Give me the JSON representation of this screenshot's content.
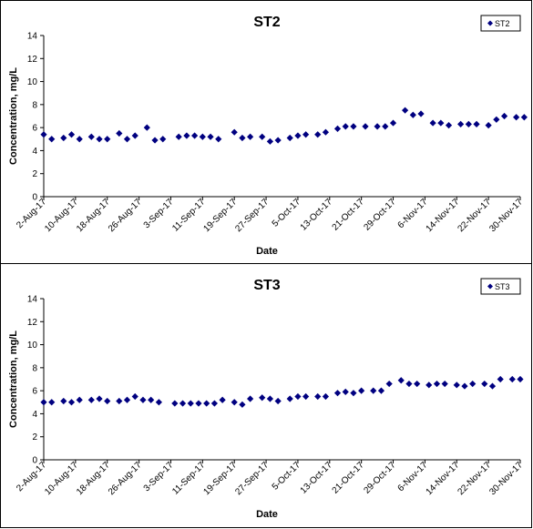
{
  "chart_data": [
    {
      "type": "scatter",
      "title": "ST2",
      "xlabel": "Date",
      "ylabel": "Concentration, mg/L",
      "ylim": [
        0,
        14
      ],
      "yticks": [
        "0",
        "2",
        "4",
        "6",
        "8",
        "10",
        "12",
        "14"
      ],
      "xlim": [
        "2-Aug-17",
        "30-Nov-17"
      ],
      "xticks": [
        "2-Aug-17",
        "10-Aug-17",
        "18-Aug-17",
        "26-Aug-17",
        "3-Sep-17",
        "11-Sep-17",
        "19-Sep-17",
        "27-Sep-17",
        "5-Oct-17",
        "13-Oct-17",
        "21-Oct-17",
        "29-Oct-17",
        "6-Nov-17",
        "14-Nov-17",
        "22-Nov-17",
        "30-Nov-17"
      ],
      "grid": false,
      "legend_position": "top-right",
      "marker_color": "#000080",
      "series": [
        {
          "name": "ST2",
          "points": [
            {
              "x": "2-Aug-17",
              "y": 5.4
            },
            {
              "x": "4-Aug-17",
              "y": 5.0
            },
            {
              "x": "7-Aug-17",
              "y": 5.1
            },
            {
              "x": "9-Aug-17",
              "y": 5.4
            },
            {
              "x": "11-Aug-17",
              "y": 5.0
            },
            {
              "x": "14-Aug-17",
              "y": 5.2
            },
            {
              "x": "16-Aug-17",
              "y": 5.0
            },
            {
              "x": "18-Aug-17",
              "y": 5.0
            },
            {
              "x": "21-Aug-17",
              "y": 5.5
            },
            {
              "x": "23-Aug-17",
              "y": 5.0
            },
            {
              "x": "25-Aug-17",
              "y": 5.3
            },
            {
              "x": "28-Aug-17",
              "y": 6.0
            },
            {
              "x": "30-Aug-17",
              "y": 4.9
            },
            {
              "x": "1-Sep-17",
              "y": 5.0
            },
            {
              "x": "5-Sep-17",
              "y": 5.2
            },
            {
              "x": "7-Sep-17",
              "y": 5.3
            },
            {
              "x": "9-Sep-17",
              "y": 5.3
            },
            {
              "x": "11-Sep-17",
              "y": 5.2
            },
            {
              "x": "13-Sep-17",
              "y": 5.2
            },
            {
              "x": "15-Sep-17",
              "y": 5.0
            },
            {
              "x": "19-Sep-17",
              "y": 5.6
            },
            {
              "x": "21-Sep-17",
              "y": 5.1
            },
            {
              "x": "23-Sep-17",
              "y": 5.2
            },
            {
              "x": "26-Sep-17",
              "y": 5.2
            },
            {
              "x": "28-Sep-17",
              "y": 4.8
            },
            {
              "x": "30-Sep-17",
              "y": 4.9
            },
            {
              "x": "3-Oct-17",
              "y": 5.1
            },
            {
              "x": "5-Oct-17",
              "y": 5.3
            },
            {
              "x": "7-Oct-17",
              "y": 5.4
            },
            {
              "x": "10-Oct-17",
              "y": 5.4
            },
            {
              "x": "12-Oct-17",
              "y": 5.6
            },
            {
              "x": "15-Oct-17",
              "y": 5.9
            },
            {
              "x": "17-Oct-17",
              "y": 6.1
            },
            {
              "x": "19-Oct-17",
              "y": 6.1
            },
            {
              "x": "22-Oct-17",
              "y": 6.1
            },
            {
              "x": "25-Oct-17",
              "y": 6.1
            },
            {
              "x": "27-Oct-17",
              "y": 6.1
            },
            {
              "x": "29-Oct-17",
              "y": 6.4
            },
            {
              "x": "1-Nov-17",
              "y": 7.5
            },
            {
              "x": "3-Nov-17",
              "y": 7.1
            },
            {
              "x": "5-Nov-17",
              "y": 7.2
            },
            {
              "x": "8-Nov-17",
              "y": 6.4
            },
            {
              "x": "10-Nov-17",
              "y": 6.4
            },
            {
              "x": "12-Nov-17",
              "y": 6.2
            },
            {
              "x": "15-Nov-17",
              "y": 6.3
            },
            {
              "x": "17-Nov-17",
              "y": 6.3
            },
            {
              "x": "19-Nov-17",
              "y": 6.3
            },
            {
              "x": "22-Nov-17",
              "y": 6.2
            },
            {
              "x": "24-Nov-17",
              "y": 6.7
            },
            {
              "x": "26-Nov-17",
              "y": 7.0
            },
            {
              "x": "29-Nov-17",
              "y": 6.9
            },
            {
              "x": "1-Dec-17",
              "y": 6.9
            }
          ]
        }
      ]
    },
    {
      "type": "scatter",
      "title": "ST3",
      "xlabel": "Date",
      "ylabel": "Concentration, mg/L",
      "ylim": [
        0,
        14
      ],
      "yticks": [
        "0",
        "2",
        "4",
        "6",
        "8",
        "10",
        "12",
        "14"
      ],
      "xlim": [
        "2-Aug-17",
        "30-Nov-17"
      ],
      "xticks": [
        "2-Aug-17",
        "10-Aug-17",
        "18-Aug-17",
        "26-Aug-17",
        "3-Sep-17",
        "11-Sep-17",
        "19-Sep-17",
        "27-Sep-17",
        "5-Oct-17",
        "13-Oct-17",
        "21-Oct-17",
        "29-Oct-17",
        "6-Nov-17",
        "14-Nov-17",
        "22-Nov-17",
        "30-Nov-17"
      ],
      "grid": false,
      "legend_position": "top-right",
      "marker_color": "#000080",
      "series": [
        {
          "name": "ST3",
          "points": [
            {
              "x": "2-Aug-17",
              "y": 5.0
            },
            {
              "x": "4-Aug-17",
              "y": 5.0
            },
            {
              "x": "7-Aug-17",
              "y": 5.1
            },
            {
              "x": "9-Aug-17",
              "y": 5.0
            },
            {
              "x": "11-Aug-17",
              "y": 5.2
            },
            {
              "x": "14-Aug-17",
              "y": 5.2
            },
            {
              "x": "16-Aug-17",
              "y": 5.3
            },
            {
              "x": "18-Aug-17",
              "y": 5.1
            },
            {
              "x": "21-Aug-17",
              "y": 5.1
            },
            {
              "x": "23-Aug-17",
              "y": 5.2
            },
            {
              "x": "25-Aug-17",
              "y": 5.5
            },
            {
              "x": "27-Aug-17",
              "y": 5.2
            },
            {
              "x": "29-Aug-17",
              "y": 5.2
            },
            {
              "x": "31-Aug-17",
              "y": 5.0
            },
            {
              "x": "4-Sep-17",
              "y": 4.9
            },
            {
              "x": "6-Sep-17",
              "y": 4.9
            },
            {
              "x": "8-Sep-17",
              "y": 4.9
            },
            {
              "x": "10-Sep-17",
              "y": 4.9
            },
            {
              "x": "12-Sep-17",
              "y": 4.9
            },
            {
              "x": "14-Sep-17",
              "y": 4.9
            },
            {
              "x": "16-Sep-17",
              "y": 5.2
            },
            {
              "x": "19-Sep-17",
              "y": 5.0
            },
            {
              "x": "21-Sep-17",
              "y": 4.8
            },
            {
              "x": "23-Sep-17",
              "y": 5.3
            },
            {
              "x": "26-Sep-17",
              "y": 5.4
            },
            {
              "x": "28-Sep-17",
              "y": 5.3
            },
            {
              "x": "30-Sep-17",
              "y": 5.1
            },
            {
              "x": "3-Oct-17",
              "y": 5.3
            },
            {
              "x": "5-Oct-17",
              "y": 5.5
            },
            {
              "x": "7-Oct-17",
              "y": 5.5
            },
            {
              "x": "10-Oct-17",
              "y": 5.5
            },
            {
              "x": "12-Oct-17",
              "y": 5.5
            },
            {
              "x": "15-Oct-17",
              "y": 5.8
            },
            {
              "x": "17-Oct-17",
              "y": 5.9
            },
            {
              "x": "19-Oct-17",
              "y": 5.8
            },
            {
              "x": "21-Oct-17",
              "y": 6.0
            },
            {
              "x": "24-Oct-17",
              "y": 6.0
            },
            {
              "x": "26-Oct-17",
              "y": 6.0
            },
            {
              "x": "28-Oct-17",
              "y": 6.6
            },
            {
              "x": "31-Oct-17",
              "y": 6.9
            },
            {
              "x": "2-Nov-17",
              "y": 6.6
            },
            {
              "x": "4-Nov-17",
              "y": 6.6
            },
            {
              "x": "7-Nov-17",
              "y": 6.5
            },
            {
              "x": "9-Nov-17",
              "y": 6.6
            },
            {
              "x": "11-Nov-17",
              "y": 6.6
            },
            {
              "x": "14-Nov-17",
              "y": 6.5
            },
            {
              "x": "16-Nov-17",
              "y": 6.4
            },
            {
              "x": "18-Nov-17",
              "y": 6.6
            },
            {
              "x": "21-Nov-17",
              "y": 6.6
            },
            {
              "x": "23-Nov-17",
              "y": 6.4
            },
            {
              "x": "25-Nov-17",
              "y": 7.0
            },
            {
              "x": "28-Nov-17",
              "y": 7.0
            },
            {
              "x": "30-Nov-17",
              "y": 7.0
            }
          ]
        }
      ]
    }
  ]
}
